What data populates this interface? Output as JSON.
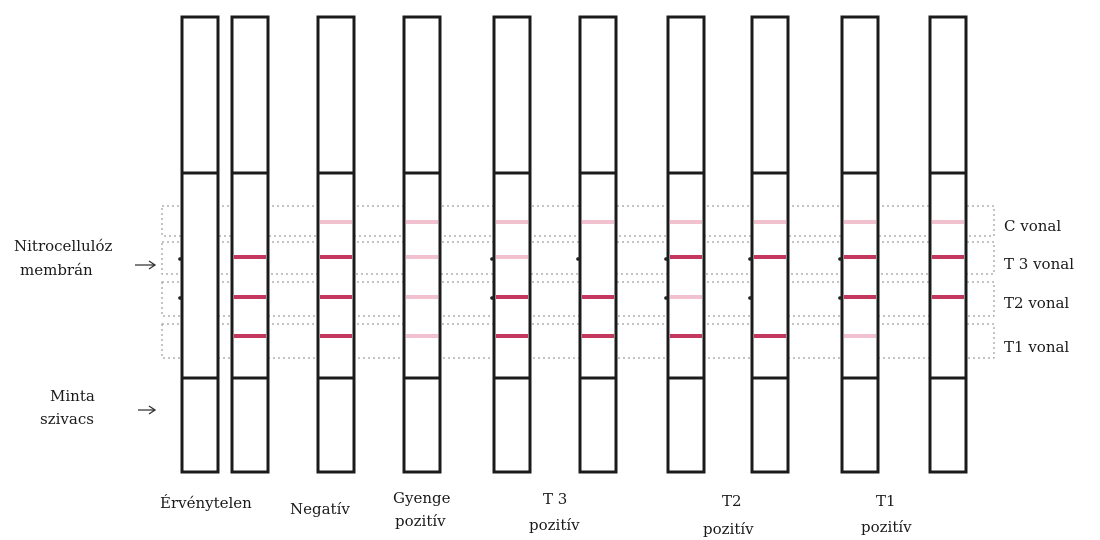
{
  "left_labels": {
    "membrane": [
      "Nitrocellulóz",
      "membrán"
    ],
    "sponge": [
      "Minta",
      "szivacs"
    ]
  },
  "line_labels": [
    "C vonal",
    "T 3 vonal",
    "T2 vonal",
    "T1 vonal"
  ],
  "result_labels": [
    [
      "Érvénytelen"
    ],
    [
      "Negatív"
    ],
    [
      "Gyenge",
      "pozitív"
    ],
    [
      "T 3",
      "pozitív"
    ],
    [
      "T2",
      "pozitív"
    ],
    [
      "T1",
      "pozitív"
    ]
  ],
  "colors": {
    "strong": "#c4375f",
    "faint": "#f1c1cf",
    "strip_border": "#1b1b1b"
  },
  "strips": [
    {
      "group": "Érvénytelen",
      "bands": [
        "none",
        "none",
        "none",
        "none"
      ]
    },
    {
      "group": "Érvénytelen",
      "bands": [
        "none",
        "strong",
        "strong",
        "strong"
      ]
    },
    {
      "group": "Negatív",
      "bands": [
        "faint",
        "strong",
        "strong",
        "strong"
      ]
    },
    {
      "group": "Gyenge pozitív",
      "bands": [
        "faint",
        "faint",
        "faint",
        "faint"
      ]
    },
    {
      "group": "T 3 pozitív",
      "bands": [
        "faint",
        "faint",
        "strong",
        "strong"
      ]
    },
    {
      "group": "T 3 pozitív",
      "bands": [
        "faint",
        "none",
        "strong",
        "strong"
      ]
    },
    {
      "group": "T2 pozitív",
      "bands": [
        "faint",
        "strong",
        "faint",
        "strong"
      ]
    },
    {
      "group": "T2 pozitív",
      "bands": [
        "faint",
        "strong",
        "none",
        "strong"
      ]
    },
    {
      "group": "T1 pozitív",
      "bands": [
        "faint",
        "strong",
        "strong",
        "faint"
      ]
    },
    {
      "group": "T1 pozitív",
      "bands": [
        "faint",
        "strong",
        "strong",
        "none"
      ]
    }
  ]
}
